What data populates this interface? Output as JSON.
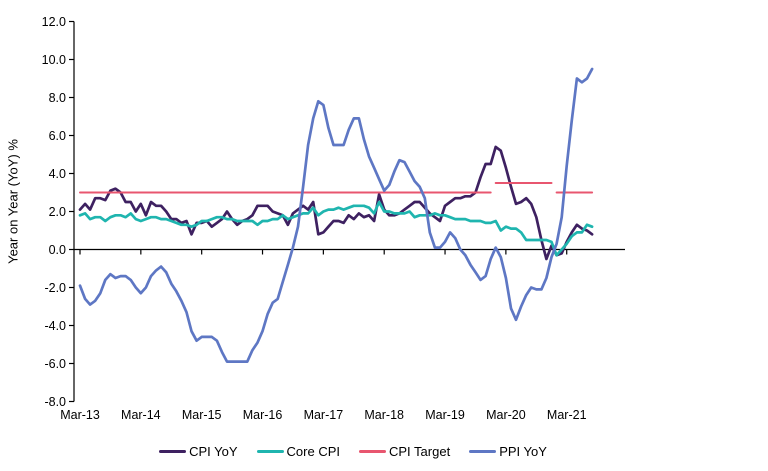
{
  "chart_data": {
    "type": "line",
    "title": "",
    "ylabel": "Year on Year (YoY) %",
    "xlabel": "",
    "ylim": [
      -8.0,
      12.0
    ],
    "y_tick_step": 2.0,
    "y_tick_labels": [
      "12.0",
      "10.0",
      "8.0",
      "6.0",
      "4.0",
      "2.0",
      "0.0",
      "-2.0",
      "-4.0",
      "-6.0",
      "-8.0"
    ],
    "x_tick_labels": [
      "Mar-13",
      "Mar-14",
      "Mar-15",
      "Mar-16",
      "Mar-17",
      "Mar-18",
      "Mar-19",
      "Mar-20",
      "Mar-21"
    ],
    "x_unit": "month",
    "x_range_months": [
      "Mar-13",
      "Aug-21"
    ],
    "grid": "none",
    "legend_position": "bottom",
    "axis_color": "#000000",
    "series": [
      {
        "name": "CPI YoY",
        "color": "#3E2161",
        "line_width": 2.7,
        "breaks_on_change": false,
        "values": [
          2.1,
          2.4,
          2.1,
          2.7,
          2.7,
          2.6,
          3.1,
          3.2,
          3.0,
          2.5,
          2.5,
          2.0,
          2.4,
          1.8,
          2.5,
          2.3,
          2.3,
          2.0,
          1.6,
          1.6,
          1.4,
          1.5,
          0.8,
          1.4,
          1.4,
          1.5,
          1.2,
          1.4,
          1.6,
          2.0,
          1.6,
          1.3,
          1.5,
          1.6,
          1.8,
          2.3,
          2.3,
          2.3,
          2.0,
          1.9,
          1.8,
          1.3,
          1.9,
          2.1,
          2.3,
          2.1,
          2.5,
          0.8,
          0.9,
          1.2,
          1.5,
          1.5,
          1.4,
          1.8,
          1.6,
          1.9,
          1.7,
          1.8,
          1.5,
          2.9,
          2.1,
          1.8,
          1.8,
          1.9,
          2.1,
          2.3,
          2.5,
          2.5,
          2.2,
          1.9,
          1.7,
          1.5,
          2.3,
          2.5,
          2.7,
          2.7,
          2.8,
          2.8,
          3.0,
          3.8,
          4.5,
          4.5,
          5.4,
          5.2,
          4.3,
          3.3,
          2.4,
          2.5,
          2.7,
          2.4,
          1.7,
          0.5,
          -0.5,
          0.2,
          -0.3,
          -0.2,
          0.4,
          0.9,
          1.3,
          1.1,
          1.0,
          0.8
        ]
      },
      {
        "name": "Core CPI",
        "color": "#1FB5AF",
        "line_width": 2.7,
        "breaks_on_change": false,
        "values": [
          1.8,
          1.9,
          1.6,
          1.7,
          1.7,
          1.5,
          1.7,
          1.8,
          1.8,
          1.7,
          1.9,
          1.6,
          1.5,
          1.6,
          1.7,
          1.7,
          1.6,
          1.6,
          1.5,
          1.4,
          1.3,
          1.3,
          1.2,
          1.3,
          1.5,
          1.5,
          1.6,
          1.7,
          1.7,
          1.6,
          1.6,
          1.5,
          1.5,
          1.5,
          1.5,
          1.3,
          1.5,
          1.5,
          1.6,
          1.6,
          1.8,
          1.6,
          1.7,
          1.8,
          1.9,
          1.9,
          2.2,
          1.8,
          2.0,
          2.1,
          2.1,
          2.2,
          2.1,
          2.2,
          2.3,
          2.3,
          2.3,
          2.2,
          1.9,
          2.5,
          2.0,
          2.0,
          1.9,
          1.9,
          1.9,
          2.0,
          1.7,
          1.8,
          1.8,
          1.8,
          1.9,
          1.8,
          1.8,
          1.7,
          1.6,
          1.6,
          1.6,
          1.5,
          1.5,
          1.5,
          1.4,
          1.4,
          1.5,
          1.0,
          1.2,
          1.1,
          1.1,
          0.9,
          0.5,
          0.5,
          0.5,
          0.5,
          0.5,
          0.4,
          -0.3,
          0.0,
          0.3,
          0.7,
          0.9,
          0.9,
          1.3,
          1.2
        ]
      },
      {
        "name": "CPI Target",
        "color": "#E8566F",
        "line_width": 2.0,
        "breaks_on_change": true,
        "values": [
          3.0,
          3.0,
          3.0,
          3.0,
          3.0,
          3.0,
          3.0,
          3.0,
          3.0,
          3.0,
          3.0,
          3.0,
          3.0,
          3.0,
          3.0,
          3.0,
          3.0,
          3.0,
          3.0,
          3.0,
          3.0,
          3.0,
          3.0,
          3.0,
          3.0,
          3.0,
          3.0,
          3.0,
          3.0,
          3.0,
          3.0,
          3.0,
          3.0,
          3.0,
          3.0,
          3.0,
          3.0,
          3.0,
          3.0,
          3.0,
          3.0,
          3.0,
          3.0,
          3.0,
          3.0,
          3.0,
          3.0,
          3.0,
          3.0,
          3.0,
          3.0,
          3.0,
          3.0,
          3.0,
          3.0,
          3.0,
          3.0,
          3.0,
          3.0,
          3.0,
          3.0,
          3.0,
          3.0,
          3.0,
          3.0,
          3.0,
          3.0,
          3.0,
          3.0,
          3.0,
          3.0,
          3.0,
          3.0,
          3.0,
          3.0,
          3.0,
          3.0,
          3.0,
          3.0,
          3.0,
          3.0,
          3.0,
          3.5,
          3.5,
          3.5,
          3.5,
          3.5,
          3.5,
          3.5,
          3.5,
          3.5,
          3.5,
          3.5,
          3.5,
          3.0,
          3.0,
          3.0,
          3.0,
          3.0,
          3.0,
          3.0,
          3.0
        ]
      },
      {
        "name": "PPI YoY",
        "color": "#5E77C4",
        "line_width": 2.7,
        "breaks_on_change": false,
        "values": [
          -1.9,
          -2.6,
          -2.9,
          -2.7,
          -2.3,
          -1.6,
          -1.3,
          -1.5,
          -1.4,
          -1.4,
          -1.6,
          -2.0,
          -2.3,
          -2.0,
          -1.4,
          -1.1,
          -0.9,
          -1.2,
          -1.8,
          -2.2,
          -2.7,
          -3.3,
          -4.3,
          -4.8,
          -4.6,
          -4.6,
          -4.6,
          -4.8,
          -5.4,
          -5.9,
          -5.9,
          -5.9,
          -5.9,
          -5.9,
          -5.3,
          -4.9,
          -4.3,
          -3.4,
          -2.8,
          -2.6,
          -1.7,
          -0.8,
          0.1,
          1.2,
          3.3,
          5.5,
          6.9,
          7.8,
          7.6,
          6.4,
          5.5,
          5.5,
          5.5,
          6.3,
          6.9,
          6.9,
          5.8,
          4.9,
          4.3,
          3.7,
          3.1,
          3.4,
          4.1,
          4.7,
          4.6,
          4.1,
          3.6,
          3.3,
          2.7,
          0.9,
          0.1,
          0.1,
          0.4,
          0.9,
          0.6,
          0.0,
          -0.3,
          -0.8,
          -1.2,
          -1.6,
          -1.4,
          -0.5,
          0.1,
          -0.4,
          -1.5,
          -3.1,
          -3.7,
          -3.0,
          -2.4,
          -2.0,
          -2.1,
          -2.1,
          -1.5,
          -0.4,
          0.3,
          1.7,
          4.4,
          6.8,
          9.0,
          8.8,
          9.0,
          9.5
        ]
      }
    ]
  }
}
